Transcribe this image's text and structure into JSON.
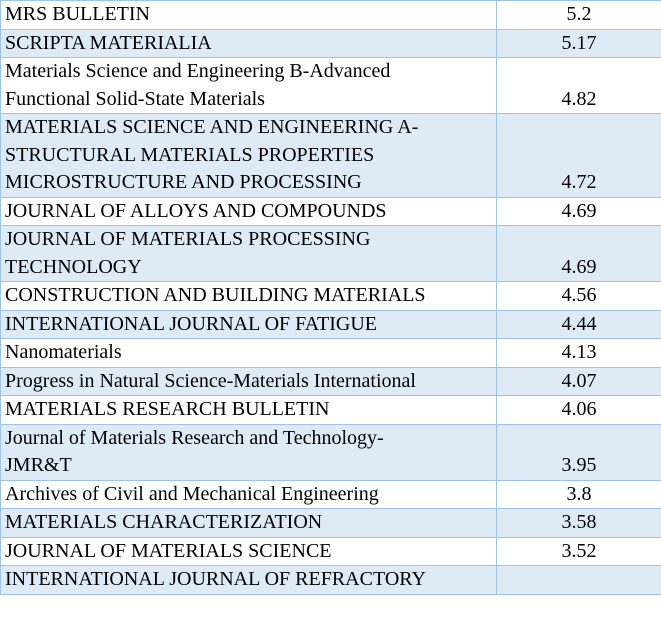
{
  "table": {
    "colors": {
      "shade": "#deebf7",
      "plain": "#ffffff",
      "border": "#9dc3e6"
    },
    "rows": [
      {
        "lines": [
          "MRS BULLETIN"
        ],
        "value": "5.2",
        "shaded": false
      },
      {
        "lines": [
          "SCRIPTA MATERIALIA"
        ],
        "value": "5.17",
        "shaded": true
      },
      {
        "lines": [
          "Materials Science and Engineering B-Advanced",
          "Functional Solid-State Materials"
        ],
        "value": "4.82",
        "shaded": false
      },
      {
        "lines": [
          "MATERIALS SCIENCE AND ENGINEERING A-",
          "STRUCTURAL MATERIALS PROPERTIES",
          "MICROSTRUCTURE AND PROCESSING"
        ],
        "value": "4.72",
        "shaded": true
      },
      {
        "lines": [
          "JOURNAL OF ALLOYS AND COMPOUNDS"
        ],
        "value": "4.69",
        "shaded": false
      },
      {
        "lines": [
          "JOURNAL OF MATERIALS PROCESSING",
          "TECHNOLOGY"
        ],
        "value": "4.69",
        "shaded": true
      },
      {
        "lines": [
          "CONSTRUCTION AND BUILDING MATERIALS"
        ],
        "value": "4.56",
        "shaded": false
      },
      {
        "lines": [
          "INTERNATIONAL JOURNAL OF FATIGUE"
        ],
        "value": "4.44",
        "shaded": true
      },
      {
        "lines": [
          "Nanomaterials"
        ],
        "value": "4.13",
        "shaded": false
      },
      {
        "lines": [
          "Progress in Natural Science-Materials International"
        ],
        "value": "4.07",
        "shaded": true
      },
      {
        "lines": [
          "MATERIALS RESEARCH BULLETIN"
        ],
        "value": "4.06",
        "shaded": false
      },
      {
        "lines": [
          "Journal of Materials Research and Technology-",
          "JMR&T"
        ],
        "value": "3.95",
        "shaded": true
      },
      {
        "lines": [
          "Archives of Civil and Mechanical Engineering"
        ],
        "value": "3.8",
        "shaded": false
      },
      {
        "lines": [
          "MATERIALS CHARACTERIZATION"
        ],
        "value": "3.58",
        "shaded": true
      },
      {
        "lines": [
          "JOURNAL OF MATERIALS SCIENCE"
        ],
        "value": "3.52",
        "shaded": false
      },
      {
        "lines": [
          "INTERNATIONAL JOURNAL OF REFRACTORY"
        ],
        "value": "",
        "shaded": true
      }
    ]
  }
}
